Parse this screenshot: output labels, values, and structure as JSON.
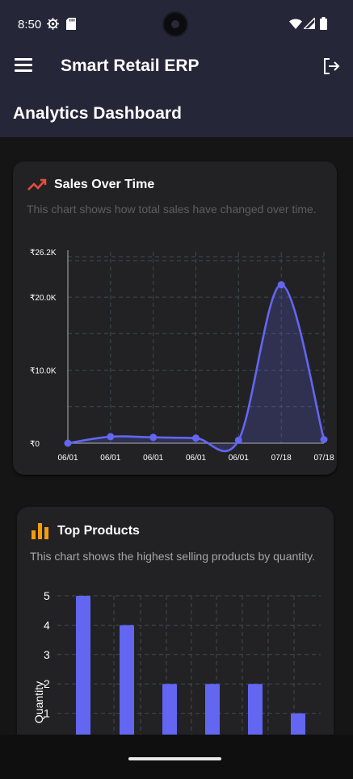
{
  "status_bar": {
    "time": "8:50",
    "left_icons": [
      "settings-gear-icon",
      "sd-card-icon"
    ],
    "right_icons": [
      "wifi-icon",
      "signal-icon",
      "battery-icon"
    ]
  },
  "app_bar": {
    "title": "Smart Retail ERP",
    "menu_icon": "hamburger-menu-icon",
    "logout_icon": "logout-icon"
  },
  "page": {
    "title": "Analytics Dashboard"
  },
  "sales_card": {
    "icon": "trending-up-icon",
    "icon_color": "#e74c3c",
    "title": "Sales Over Time",
    "description": "This chart shows how total sales have changed over time.",
    "chart_data": {
      "type": "area",
      "line_color": "#6366f1",
      "x": [
        "06/01",
        "06/01",
        "06/01",
        "06/01",
        "06/01",
        "07/18",
        "07/18"
      ],
      "values": [
        0,
        900,
        800,
        700,
        400,
        21700,
        500
      ],
      "yticks": [
        "₹26.2K",
        "₹20.0K",
        "₹10.0K",
        "₹0"
      ],
      "ytick_values": [
        26200,
        20000,
        10000,
        0
      ],
      "ylim": [
        0,
        26200
      ],
      "grid": true
    }
  },
  "products_card": {
    "icon": "bar-chart-icon",
    "icon_color": "#f39c12",
    "title": "Top Products",
    "description": "This chart shows the highest selling products by quantity.",
    "chart_data": {
      "type": "bar",
      "bar_color": "#6366f1",
      "values": [
        5,
        4,
        2,
        2,
        2,
        1
      ],
      "yticks": [
        "5",
        "4",
        "3",
        "2",
        "1"
      ],
      "ytick_values": [
        5,
        4,
        3,
        2,
        1
      ],
      "ylabel": "Quantity",
      "ylim": [
        0,
        5
      ],
      "grid": true
    }
  }
}
